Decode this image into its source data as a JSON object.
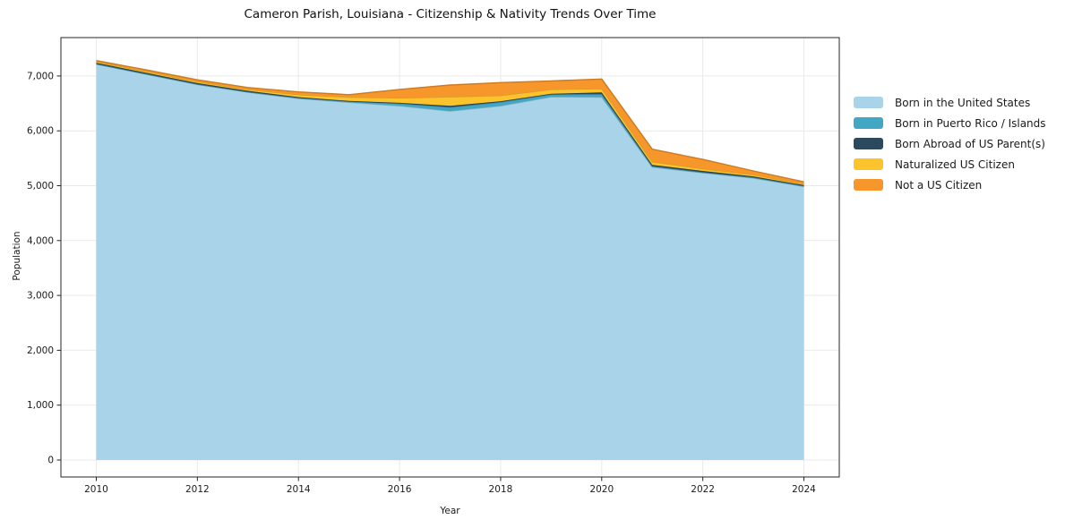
{
  "chart_data": {
    "type": "area",
    "stacked": true,
    "title": "Cameron Parish, Louisiana - Citizenship & Nativity Trends Over Time",
    "xlabel": "Year",
    "ylabel": "Population",
    "x": [
      2010,
      2011,
      2012,
      2013,
      2014,
      2015,
      2016,
      2017,
      2018,
      2019,
      2020,
      2021,
      2022,
      2023,
      2024
    ],
    "series": [
      {
        "name": "Born in the United States",
        "color": "#a8d3e8",
        "values": [
          7215,
          7030,
          6845,
          6705,
          6590,
          6520,
          6455,
          6360,
          6455,
          6620,
          6615,
          5340,
          5235,
          5140,
          4985
        ]
      },
      {
        "name": "Born in Puerto Rico / Islands",
        "color": "#41a7c4",
        "values": [
          5,
          5,
          5,
          5,
          10,
          15,
          45,
          70,
          70,
          45,
          55,
          15,
          10,
          10,
          10
        ]
      },
      {
        "name": "Born Abroad of US Parent(s)",
        "color": "#2b4a5e",
        "values": [
          20,
          20,
          20,
          20,
          15,
          10,
          10,
          25,
          15,
          10,
          30,
          25,
          25,
          20,
          15
        ]
      },
      {
        "name": "Naturalized US Citizen",
        "color": "#fcc32d",
        "values": [
          20,
          25,
          25,
          25,
          45,
          70,
          90,
          165,
          105,
          80,
          70,
          55,
          40,
          30,
          20
        ]
      },
      {
        "name": "Not a US Citizen",
        "color": "#f7962a",
        "values": [
          20,
          30,
          35,
          35,
          50,
          45,
          155,
          215,
          235,
          155,
          175,
          230,
          170,
          70,
          40
        ]
      }
    ],
    "x_ticks": [
      {
        "value": 2010,
        "label": "2010"
      },
      {
        "value": 2012,
        "label": "2012"
      },
      {
        "value": 2014,
        "label": "2014"
      },
      {
        "value": 2016,
        "label": "2016"
      },
      {
        "value": 2018,
        "label": "2018"
      },
      {
        "value": 2020,
        "label": "2020"
      },
      {
        "value": 2022,
        "label": "2022"
      },
      {
        "value": 2024,
        "label": "2024"
      }
    ],
    "y_ticks": [
      {
        "value": 0,
        "label": "0"
      },
      {
        "value": 1000,
        "label": "1,000"
      },
      {
        "value": 2000,
        "label": "2,000"
      },
      {
        "value": 3000,
        "label": "3,000"
      },
      {
        "value": 4000,
        "label": "4,000"
      },
      {
        "value": 5000,
        "label": "5,000"
      },
      {
        "value": 6000,
        "label": "6,000"
      },
      {
        "value": 7000,
        "label": "7,000"
      }
    ],
    "xlim": [
      2009.3,
      2024.7
    ],
    "ylim": [
      -310,
      7700
    ],
    "grid": true,
    "legend_position": "right",
    "colors": {
      "grid": "#e9e9e9",
      "frame": "#262626",
      "text": "#1a1a1a"
    }
  }
}
